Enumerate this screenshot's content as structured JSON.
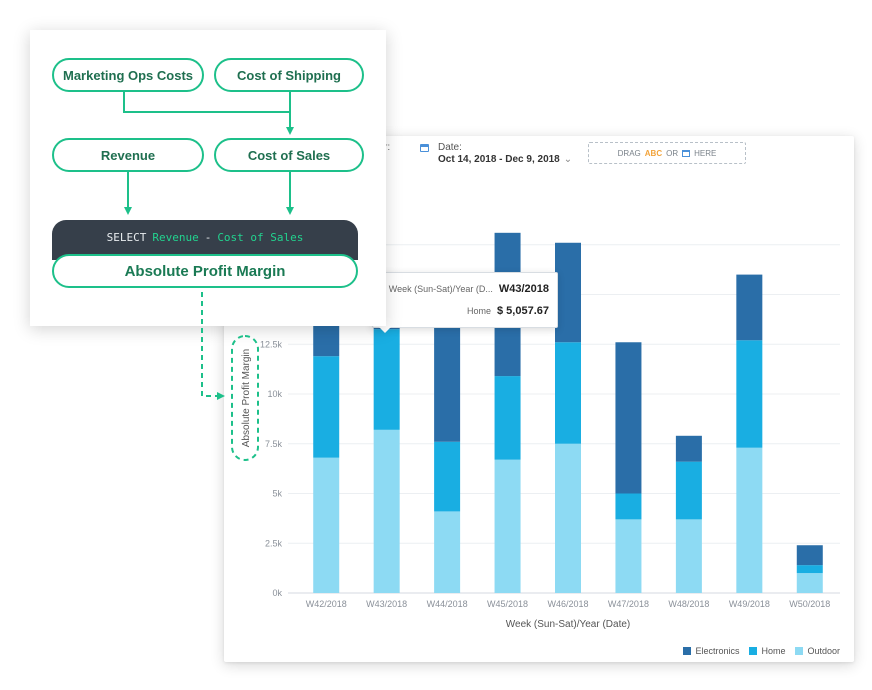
{
  "formula": {
    "inputs": {
      "marketing_ops_costs": "Marketing Ops Costs",
      "cost_of_shipping": "Cost of Shipping",
      "revenue": "Revenue",
      "cost_of_sales": "Cost of Sales"
    },
    "sql": {
      "keyword": "SELECT",
      "left_operand": "Revenue",
      "operator": "-",
      "right_operand": "Cost of Sales"
    },
    "result": "Absolute Profit Margin"
  },
  "toolbar": {
    "partial_label": "r:",
    "date_label": "Date:",
    "date_range": "Oct 14, 2018 - Dec 9, 2018",
    "date_chevron": "⌄",
    "drag_prefix": "DRAG",
    "drag_abc": "ABC",
    "drag_or": "OR",
    "drag_here": "HERE"
  },
  "tooltip": {
    "row1_label": "Week (Sun-Sat)/Year (D...",
    "row1_value": "W43/2018",
    "row2_label": "Home",
    "row2_value": "$ 5,057.67"
  },
  "colors": {
    "electronics": "#2a6ea8",
    "home": "#19aee2",
    "outdoor": "#8ddaf3",
    "accent_green": "#1dc08a"
  },
  "chart_data": {
    "type": "bar",
    "stacked": true,
    "categories": [
      "W42/2018",
      "W43/2018",
      "W44/2018",
      "W45/2018",
      "W46/2018",
      "W47/2018",
      "W48/2018",
      "W49/2018",
      "W50/2018"
    ],
    "series": [
      {
        "name": "Outdoor",
        "values": [
          6800,
          8200,
          4100,
          6700,
          7500,
          3700,
          3700,
          7300,
          1000
        ]
      },
      {
        "name": "Home",
        "values": [
          5100,
          5057.67,
          3500,
          4200,
          5100,
          1300,
          2900,
          5400,
          400
        ]
      },
      {
        "name": "Electronics",
        "values": [
          3200,
          2000,
          6200,
          7200,
          5000,
          7600,
          1300,
          3300,
          1000
        ]
      }
    ],
    "xlabel": "Week (Sun-Sat)/Year (Date)",
    "ylabel": "Absolute Profit Margin",
    "yticks": [
      "0k",
      "2.5k",
      "5k",
      "7.5k",
      "10k",
      "12.5k"
    ],
    "ylim": [
      0,
      17500
    ],
    "grid": true,
    "legend_position": "bottom-right"
  }
}
